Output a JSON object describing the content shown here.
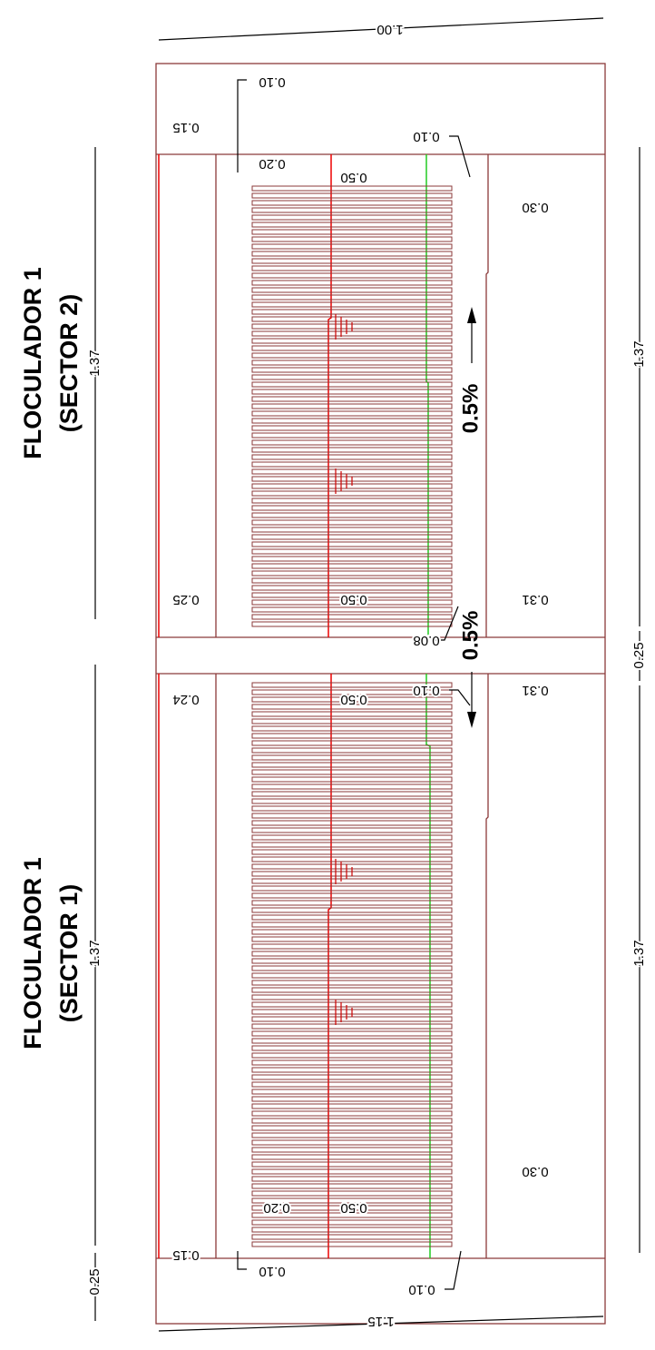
{
  "titles": [
    {
      "line1": "FLOCULADOR 1",
      "line2": "(SECTOR 2)"
    },
    {
      "line1": "FLOCULADOR 1",
      "line2": "(SECTOR 1)"
    }
  ],
  "slopes": [
    "0.5%",
    "0.5%"
  ],
  "dimensions": [
    "1.00",
    "0.10",
    "0.15",
    "0.10",
    "0.20",
    "0.50",
    "0.30",
    "1.37",
    "1.37",
    "0.25",
    "0.50",
    "0.31",
    "0.08",
    "0.25",
    "0.10",
    "0.24",
    "0.50",
    "0.31",
    "1.37",
    "1.37",
    "0.30",
    "0.20",
    "0.50",
    "0.15",
    "0.25",
    "0.10",
    "0.10",
    "1.15"
  ]
}
